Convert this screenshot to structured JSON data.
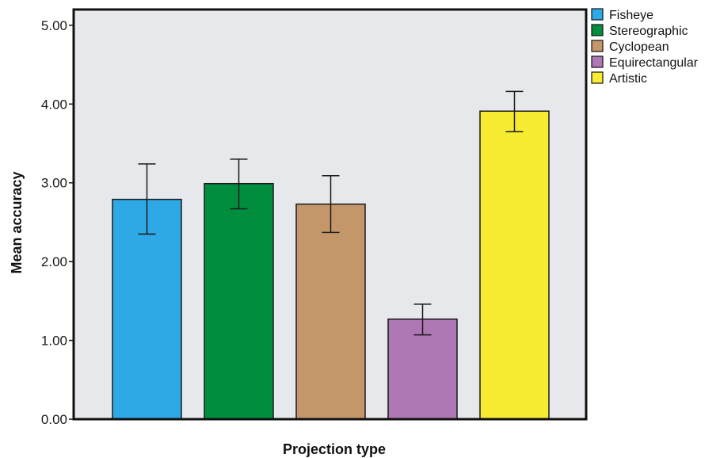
{
  "chart_data": {
    "type": "bar",
    "categories": [
      "Fisheye",
      "Stereographic",
      "Cyclopean",
      "Equirectangular",
      "Artistic"
    ],
    "values": [
      2.79,
      2.99,
      2.73,
      1.27,
      3.91
    ],
    "error_low": [
      2.35,
      2.67,
      2.37,
      1.07,
      3.65
    ],
    "error_high": [
      3.24,
      3.3,
      3.09,
      1.46,
      4.16
    ],
    "colors": [
      "#2EA9E6",
      "#008E3E",
      "#C4976B",
      "#AD78B3",
      "#F8EC32"
    ],
    "xlabel": "Projection type",
    "ylabel": "Mean accuracy",
    "ylim": [
      0,
      5.2
    ],
    "yticks": [
      "0.00",
      "1.00",
      "2.00",
      "3.00",
      "4.00",
      "5.00"
    ],
    "ytick_values": [
      0,
      1,
      2,
      3,
      4,
      5
    ],
    "legend": [
      "Fisheye",
      "Stereographic",
      "Cyclopean",
      "Equirectangular",
      "Artistic"
    ],
    "legend_position": "top-right outside",
    "plot_background": "#E6E8EC",
    "grid": false
  }
}
